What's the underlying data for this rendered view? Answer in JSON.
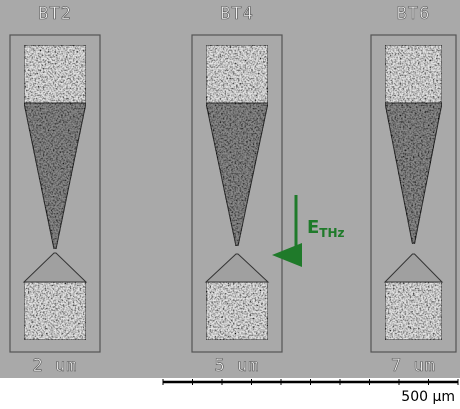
{
  "devices": [
    {
      "name": "BT2",
      "gap": "2 um"
    },
    {
      "name": "BT4",
      "gap": "5 um"
    },
    {
      "name": "BT6",
      "gap": "7 um"
    }
  ],
  "field_label": {
    "main": "E",
    "sub": "THz"
  },
  "scale_bar": {
    "label": "500 µm"
  }
}
